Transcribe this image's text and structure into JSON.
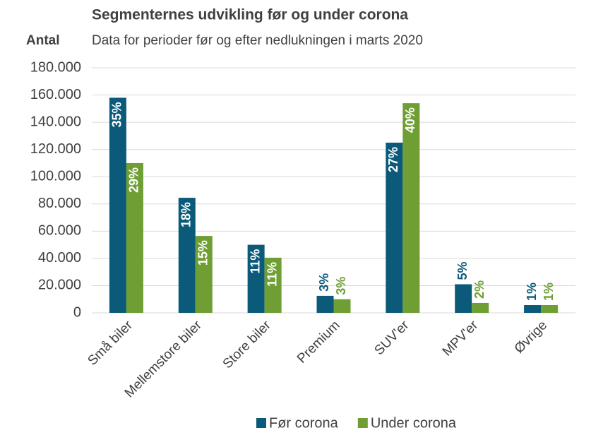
{
  "chart_data": {
    "type": "bar",
    "title": "Segmenternes udvikling før og under corona",
    "subtitle": "Data for perioder før og efter nedlukningen i marts 2020",
    "y_axis_label": "Antal",
    "categories": [
      "Små biler",
      "Mellemstore biler",
      "Store biler",
      "Premium",
      "SUV'er",
      "MPV'er",
      "Øvrige"
    ],
    "series": [
      {
        "name": "Før corona",
        "color": "#0b5a7a",
        "values": [
          158000,
          84500,
          50000,
          12500,
          125000,
          21000,
          5700
        ],
        "share_labels": [
          "35%",
          "18%",
          "11%",
          "3%",
          "27%",
          "5%",
          "1%"
        ]
      },
      {
        "name": "Under corona",
        "color": "#6f9e34",
        "values": [
          110000,
          56500,
          40500,
          10000,
          154000,
          7300,
          5700
        ],
        "share_labels": [
          "29%",
          "15%",
          "11%",
          "3%",
          "40%",
          "2%",
          "1%"
        ]
      }
    ],
    "ylim": [
      0,
      180000
    ],
    "yticks": [
      0,
      {
        "value": 20000,
        "label": "20.000"
      },
      {
        "value": 40000,
        "label": "40.000"
      },
      {
        "value": 60000,
        "label": "60.000"
      },
      {
        "value": 80000,
        "label": "80.000"
      },
      {
        "value": 100000,
        "label": "100.000"
      },
      {
        "value": 120000,
        "label": "120.000"
      },
      {
        "value": 140000,
        "label": "140.000"
      },
      {
        "value": 160000,
        "label": "160.000"
      },
      {
        "value": 180000,
        "label": "180.000"
      }
    ],
    "grid": true,
    "legend": "bottom"
  }
}
